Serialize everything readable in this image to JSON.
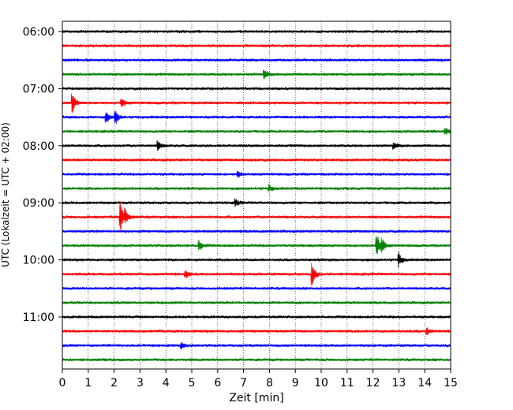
{
  "chart_data": {
    "type": "line",
    "xlabel": "Zeit  [min]",
    "ylabel": "UTC (Lokalzeit = UTC + 02:00)",
    "xlim": [
      0,
      15
    ],
    "x_ticks": [
      "0",
      "1",
      "2",
      "3",
      "4",
      "5",
      "6",
      "7",
      "8",
      "9",
      "10",
      "11",
      "12",
      "13",
      "14",
      "15"
    ],
    "grid": "vertical-dotted",
    "trace_interval_minutes": 15,
    "y_tick_labels": [
      "06:00",
      "07:00",
      "08:00",
      "09:00",
      "10:00",
      "11:00"
    ],
    "color_cycle": [
      "#000000",
      "#ff0000",
      "#0000ff",
      "#008000"
    ],
    "series": [
      {
        "start": "06:00",
        "events": []
      },
      {
        "start": "06:15",
        "events": []
      },
      {
        "start": "06:30",
        "events": []
      },
      {
        "start": "06:45",
        "events": [
          {
            "t": 7.8,
            "amp": 7
          }
        ]
      },
      {
        "start": "07:00",
        "events": []
      },
      {
        "start": "07:15",
        "events": [
          {
            "t": 0.4,
            "amp": 12
          },
          {
            "t": 2.3,
            "amp": 5
          }
        ]
      },
      {
        "start": "07:30",
        "events": [
          {
            "t": 1.7,
            "amp": 6
          },
          {
            "t": 2.05,
            "amp": 9
          }
        ]
      },
      {
        "start": "07:45",
        "events": [
          {
            "t": 14.8,
            "amp": 5
          }
        ]
      },
      {
        "start": "08:00",
        "events": [
          {
            "t": 3.7,
            "amp": 6
          },
          {
            "t": 12.8,
            "amp": 5
          }
        ]
      },
      {
        "start": "08:15",
        "events": []
      },
      {
        "start": "08:30",
        "events": [
          {
            "t": 6.8,
            "amp": 4
          }
        ]
      },
      {
        "start": "08:45",
        "events": [
          {
            "t": 8.0,
            "amp": 4
          }
        ]
      },
      {
        "start": "09:00",
        "events": [
          {
            "t": 6.7,
            "amp": 4
          }
        ]
      },
      {
        "start": "09:15",
        "events": [
          {
            "t": 2.25,
            "amp": 20
          },
          {
            "t": 2.45,
            "amp": 7
          }
        ]
      },
      {
        "start": "09:30",
        "events": []
      },
      {
        "start": "09:45",
        "events": [
          {
            "t": 5.3,
            "amp": 6
          },
          {
            "t": 12.15,
            "amp": 16
          },
          {
            "t": 12.35,
            "amp": 7
          }
        ]
      },
      {
        "start": "10:00",
        "events": [
          {
            "t": 13.0,
            "amp": 9
          }
        ]
      },
      {
        "start": "10:15",
        "events": [
          {
            "t": 4.75,
            "amp": 6
          },
          {
            "t": 9.65,
            "amp": 14
          }
        ]
      },
      {
        "start": "10:30",
        "events": []
      },
      {
        "start": "10:45",
        "events": []
      },
      {
        "start": "11:00",
        "events": []
      },
      {
        "start": "11:15",
        "events": [
          {
            "t": 14.1,
            "amp": 4
          }
        ]
      },
      {
        "start": "11:30",
        "events": [
          {
            "t": 4.6,
            "amp": 4
          }
        ]
      },
      {
        "start": "11:45",
        "events": []
      }
    ]
  }
}
